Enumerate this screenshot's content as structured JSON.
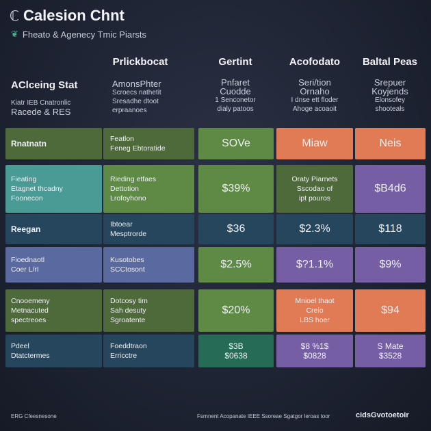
{
  "header": {
    "title": "Calesion Chnt",
    "subtitle": "Fheato & Agenecy Tmic Piarsts",
    "title_icon": "chart-glyph-icon",
    "subtitle_icon": "leaf-icon"
  },
  "columns": {
    "c1": "Prlickbocat",
    "c2": "Gertint",
    "c3": "Acofodato",
    "c4": "Baltal Peas"
  },
  "row_header": {
    "title": "AClceing Stat",
    "line1": "Kiatr  IEB  Cnatronlic",
    "line2": "Racede  & RES"
  },
  "col_info": {
    "c1": [
      "AmonsPhter",
      "Scroecs nathetit",
      "Sresadhe dtoot",
      "erpraanoes"
    ],
    "c2": [
      "Pnfaret",
      "Cuodde",
      "1 Senconetor",
      "dialy patoos"
    ],
    "c3": [
      "Seri/tion",
      "Ornaho",
      "I dnse ett floder",
      "Ahoge acoaoit"
    ],
    "c4": [
      "Srepuer",
      "Koyjends",
      "Elonsofey",
      "shooteals"
    ]
  },
  "chart_data": {
    "type": "table",
    "colors": {
      "background": "#1e2332",
      "olive": "#4f6a3a",
      "green": "#5e8a46",
      "teal": "#4a9a96",
      "navy": "#25465d",
      "slate": "#5a6aa0",
      "orange": "#e07b56",
      "purple": "#765ea4",
      "dark_green": "#256b55"
    },
    "rows": [
      {
        "label": [
          "Rnatnatn"
        ],
        "detail": [
          "Featlon",
          "Feneg Ebtoratide"
        ],
        "values": [
          [
            "SOVe"
          ],
          [
            "Miaw"
          ],
          [
            "Neis"
          ]
        ]
      },
      {
        "label": [
          "Fieating",
          "Etagnet thcadny",
          "Foonecon"
        ],
        "detail": [
          "Rieding etfaes",
          "Dettotion",
          "Lrofoyhono"
        ],
        "values": [
          [
            "$39%"
          ],
          [
            "Oraty Piarnets",
            "Sscodao of",
            "ipt pouros"
          ],
          [
            "$B4d6"
          ]
        ]
      },
      {
        "label": [
          "Reegan"
        ],
        "detail": [
          "Ibtoear",
          "Mesptrorde"
        ],
        "values": [
          [
            "$36"
          ],
          [
            "$2.3%"
          ],
          [
            "$118"
          ]
        ]
      },
      {
        "label": [
          "Fioednaotl",
          "Coer L/rI"
        ],
        "detail": [
          "Kusotobes",
          "SCCtosont"
        ],
        "values": [
          [
            "$2.5%"
          ],
          [
            "$?1.1%"
          ],
          [
            "$9%"
          ]
        ]
      },
      {
        "label": [
          "Cnooemeny",
          "Metnacuted",
          "spectreoes"
        ],
        "detail": [
          "Dotcosy tim",
          "Sah desuty",
          "Sgroatente"
        ],
        "values": [
          [
            "$20%"
          ],
          [
            "Mnioel thaot",
            "Creio",
            "LBS hoer"
          ],
          [
            "$94"
          ]
        ]
      },
      {
        "label": [
          "Pdeel",
          "Dtatctermes"
        ],
        "detail": [
          "Foeddtraon",
          "Erricctre"
        ],
        "values": [
          [
            "$3B",
            "$0638"
          ],
          [
            "$8 %1$",
            "$0828"
          ],
          [
            "S Mate",
            "$3528"
          ]
        ]
      }
    ]
  },
  "footer": {
    "left": "ERG  Cfeesnesone",
    "center": "Fsrnnent Acopanate IEEE Ssoreae Sgatgor leroas toor",
    "right": "cidsGvotoetoir"
  }
}
